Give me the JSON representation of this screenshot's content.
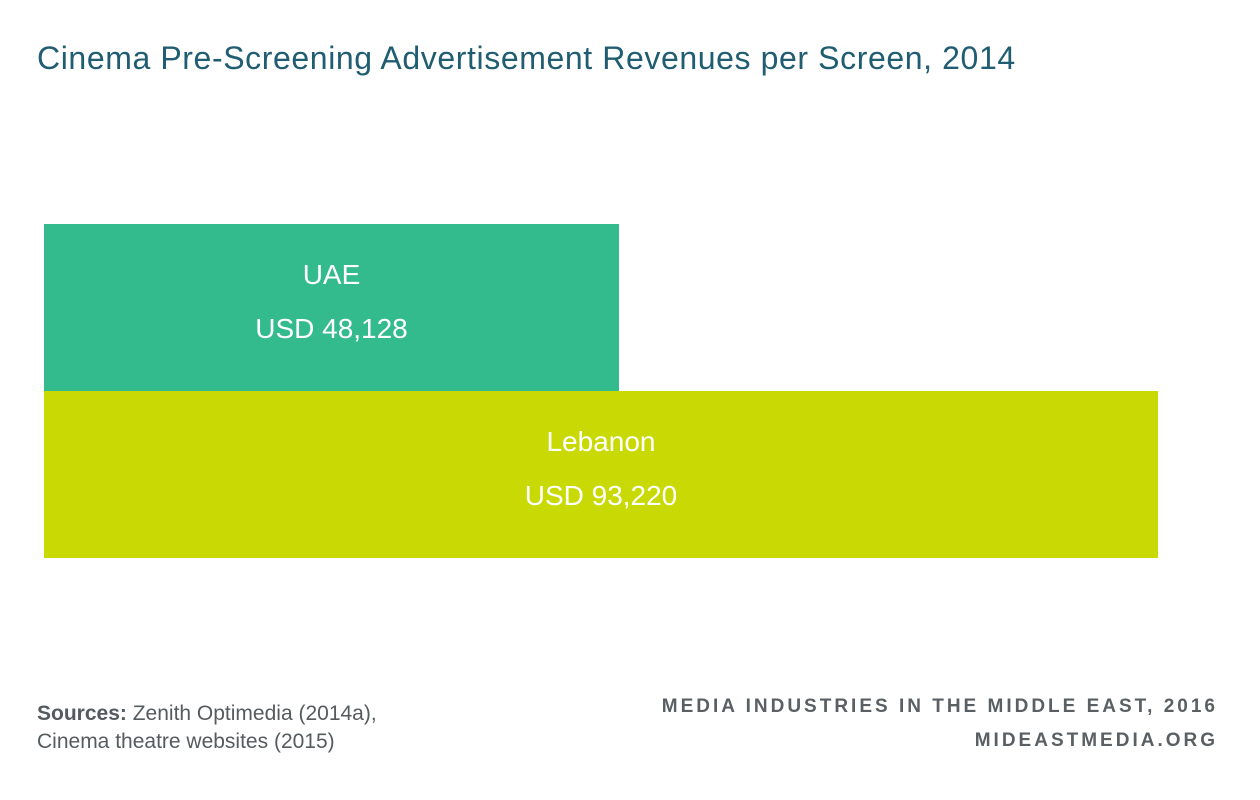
{
  "chart_data": {
    "type": "bar",
    "orientation": "horizontal",
    "title": "Cinema Pre-Screening Advertisement Revenues per Screen, 2014",
    "categories": [
      "UAE",
      "Lebanon"
    ],
    "values": [
      48128,
      93220
    ],
    "value_labels": [
      "USD 48,128",
      "USD 93,220"
    ],
    "colors": [
      "#33bb8d",
      "#c8d903"
    ],
    "grid": false
  },
  "footer": {
    "sources_label": "Sources:",
    "sources_line1": "Zenith Optimedia (2014a),",
    "sources_line2": "Cinema theatre websites (2015)",
    "credit_line1": "MEDIA INDUSTRIES IN THE MIDDLE EAST, 2016",
    "credit_line2": "MIDEASTMEDIA.ORG"
  }
}
